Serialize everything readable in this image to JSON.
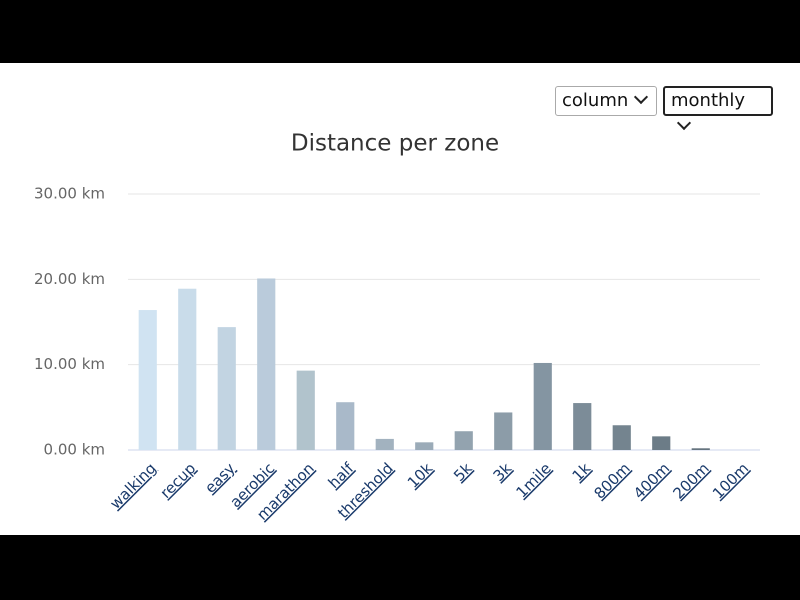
{
  "controls": {
    "chart_type": "column",
    "period": "monthly"
  },
  "chart_data": {
    "type": "bar",
    "title": "Distance per zone",
    "categories": [
      "walking",
      "recup",
      "easy",
      "aerobic",
      "marathon",
      "half",
      "threshold",
      "10k",
      "5k",
      "3k",
      "1mile",
      "1k",
      "800m",
      "400m",
      "200m",
      "100m"
    ],
    "values": [
      16.4,
      18.9,
      14.4,
      20.1,
      9.3,
      5.6,
      1.3,
      0.9,
      2.2,
      4.4,
      10.2,
      5.5,
      2.9,
      1.6,
      0.2,
      0
    ],
    "colors": [
      "#d0e3f2",
      "#c9dcea",
      "#c2d4e2",
      "#bacbdb",
      "#b1c3cc",
      "#a9b9c9",
      "#a2b2bf",
      "#9babb8",
      "#93a3af",
      "#8c9ca8",
      "#8495a2",
      "#7c8c98",
      "#74848f",
      "#6c7c87",
      "#65747f",
      "#5e6d77"
    ],
    "ylim": [
      0,
      30
    ],
    "yticks": [
      {
        "value": 0,
        "label": "0.00 km"
      },
      {
        "value": 10,
        "label": "10.00 km"
      },
      {
        "value": 20,
        "label": "20.00 km"
      },
      {
        "value": 30,
        "label": "30.00 km"
      }
    ],
    "grid": true
  }
}
